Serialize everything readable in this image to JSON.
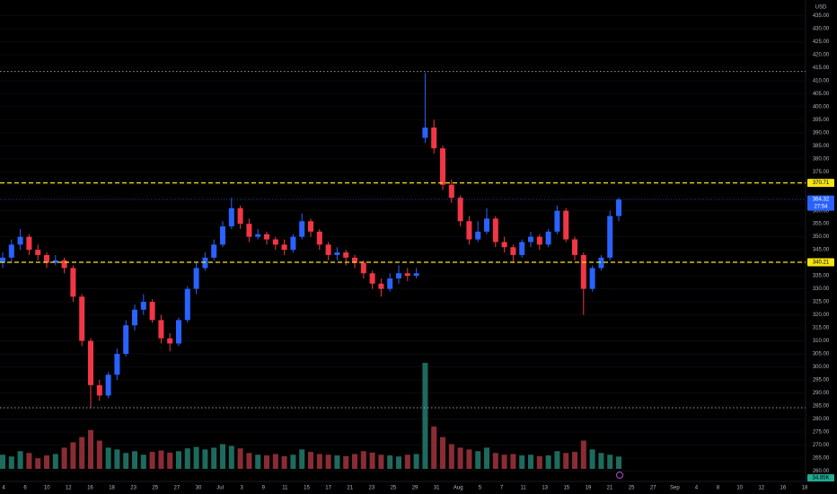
{
  "chart_data": {
    "type": "candlestick",
    "currency": "USD",
    "countdown": "27:54",
    "ylim": [
      256,
      441
    ],
    "yticks": [
      {
        "value": 260,
        "label": "260.00"
      },
      {
        "value": 265,
        "label": "265.00"
      },
      {
        "value": 270,
        "label": "270.00"
      },
      {
        "value": 275,
        "label": "275.00"
      },
      {
        "value": 280,
        "label": "280.00"
      },
      {
        "value": 285,
        "label": "285.00"
      },
      {
        "value": 290,
        "label": "290.00"
      },
      {
        "value": 295,
        "label": "295.00"
      },
      {
        "value": 300,
        "label": "300.00"
      },
      {
        "value": 305,
        "label": "305.00"
      },
      {
        "value": 310,
        "label": "310.00"
      },
      {
        "value": 315,
        "label": "315.00"
      },
      {
        "value": 320,
        "label": "320.00"
      },
      {
        "value": 325,
        "label": "325.00"
      },
      {
        "value": 330,
        "label": "330.00"
      },
      {
        "value": 335,
        "label": "335.00"
      },
      {
        "value": 340,
        "label": "340.00"
      },
      {
        "value": 345,
        "label": "345.00"
      },
      {
        "value": 350,
        "label": "350.00"
      },
      {
        "value": 355,
        "label": "355.00"
      },
      {
        "value": 360,
        "label": "360.00"
      },
      {
        "value": 365,
        "label": "365.00"
      },
      {
        "value": 370,
        "label": "370.00"
      },
      {
        "value": 375,
        "label": "375.00"
      },
      {
        "value": 380,
        "label": "380.00"
      },
      {
        "value": 385,
        "label": "385.00"
      },
      {
        "value": 390,
        "label": "390.00"
      },
      {
        "value": 395,
        "label": "395.00"
      },
      {
        "value": 400,
        "label": "400.00"
      },
      {
        "value": 405,
        "label": "405.00"
      },
      {
        "value": 410,
        "label": "410.00"
      },
      {
        "value": 415,
        "label": "415.00"
      },
      {
        "value": 420,
        "label": "420.00"
      },
      {
        "value": 425,
        "label": "425.00"
      },
      {
        "value": 430,
        "label": "430.00"
      },
      {
        "value": 435,
        "label": "435.00"
      }
    ],
    "xticks": [
      "4",
      "6",
      "10",
      "12",
      "16",
      "18",
      "23",
      "25",
      "27",
      "30",
      "Jul",
      "3",
      "9",
      "11",
      "15",
      "17",
      "21",
      "23",
      "25",
      "29",
      "31",
      "Aug",
      "5",
      "7",
      "11",
      "13",
      "15",
      "19",
      "21",
      "25",
      "27",
      "Sep",
      "4",
      "8",
      "10",
      "12",
      "16",
      "18"
    ],
    "grid": true,
    "up_color": "#2962ff",
    "down_color": "#f23645",
    "volume_up_color": "#1d6b5e",
    "volume_down_color": "#8a2c34",
    "levels": [
      {
        "value": 413.5,
        "style": "dotted",
        "color": "#9a9a9a"
      },
      {
        "value": 370.71,
        "style": "dashed",
        "color": "#f5e313",
        "labeled": true
      },
      {
        "value": 340.21,
        "style": "dashed",
        "color": "#f5e313",
        "labeled": true
      },
      {
        "value": 284.3,
        "style": "dotted",
        "color": "#9a9a9a"
      }
    ],
    "candles": {
      "open": [
        340,
        342,
        347,
        350,
        345,
        343,
        340,
        341,
        338,
        327,
        310,
        293,
        289,
        297,
        305,
        316,
        322,
        325,
        318,
        311,
        309,
        318,
        330,
        338,
        342,
        347,
        354,
        361,
        355,
        350,
        351,
        349,
        347,
        345,
        350,
        356,
        352,
        347,
        343,
        344,
        342,
        340,
        336,
        332,
        330,
        334,
        336,
        335,
        388,
        392,
        384,
        370,
        365,
        356,
        349,
        352,
        357,
        348,
        346,
        343,
        348,
        350,
        347,
        352,
        360,
        349,
        343,
        330,
        338,
        342,
        358
      ],
      "high": [
        344,
        349,
        353,
        351,
        347,
        344,
        343,
        342,
        339,
        328,
        311,
        295,
        298,
        307,
        318,
        324,
        328,
        326,
        320,
        313,
        319,
        331,
        340,
        344,
        349,
        356,
        365,
        362,
        357,
        353,
        352,
        350,
        349,
        351,
        359,
        357,
        353,
        348,
        346,
        345,
        343,
        341,
        337,
        334,
        336,
        339,
        338,
        338,
        413,
        395,
        385,
        372,
        366,
        358,
        356,
        361,
        358,
        350,
        347,
        349,
        352,
        351,
        353,
        362,
        361,
        350,
        344,
        339,
        343,
        360,
        365
      ],
      "low": [
        338,
        340,
        345,
        343,
        341,
        338,
        339,
        336,
        325,
        308,
        284,
        287,
        288,
        295,
        304,
        314,
        320,
        317,
        309,
        306,
        308,
        317,
        328,
        337,
        341,
        346,
        353,
        353,
        348,
        349,
        347,
        345,
        343,
        344,
        349,
        350,
        345,
        341,
        341,
        339,
        338,
        334,
        330,
        327,
        329,
        332,
        333,
        334,
        386,
        382,
        368,
        363,
        354,
        347,
        348,
        351,
        346,
        344,
        340,
        342,
        346,
        345,
        346,
        351,
        348,
        341,
        320,
        329,
        337,
        341,
        356
      ],
      "close": [
        342,
        347,
        350,
        345,
        343,
        340,
        341,
        338,
        327,
        310,
        293,
        289,
        297,
        305,
        316,
        322,
        325,
        318,
        311,
        309,
        318,
        330,
        338,
        342,
        347,
        354,
        361,
        355,
        350,
        351,
        349,
        347,
        345,
        350,
        356,
        352,
        347,
        343,
        344,
        342,
        340,
        336,
        332,
        330,
        334,
        336,
        335,
        336,
        392,
        384,
        370,
        365,
        356,
        349,
        352,
        357,
        348,
        346,
        343,
        348,
        350,
        347,
        352,
        360,
        349,
        343,
        330,
        338,
        342,
        358,
        364.32
      ]
    },
    "volume": {
      "values": [
        40000,
        35000,
        50000,
        45000,
        30000,
        38000,
        42000,
        60000,
        75000,
        90000,
        110000,
        80000,
        60000,
        55000,
        45000,
        50000,
        40000,
        48000,
        52000,
        46000,
        50000,
        58000,
        62000,
        55000,
        60000,
        70000,
        65000,
        58000,
        45000,
        40000,
        38000,
        42000,
        36000,
        40000,
        55000,
        48000,
        42000,
        40000,
        38000,
        36000,
        42000,
        50000,
        46000,
        40000,
        38000,
        35000,
        40000,
        42000,
        300000,
        120000,
        90000,
        70000,
        60000,
        55000,
        50000,
        60000,
        45000,
        40000,
        42000,
        38000,
        40000,
        36000,
        38000,
        50000,
        45000,
        48000,
        80000,
        55000,
        45000,
        40000,
        34850
      ],
      "value_labels": [
        null,
        null,
        null,
        null,
        null,
        null,
        null,
        null,
        null,
        null,
        null,
        null,
        null,
        null,
        null,
        null,
        null,
        null,
        null,
        null,
        null,
        null,
        null,
        null,
        null,
        null,
        null,
        null,
        null,
        null,
        null,
        null,
        null,
        null,
        null,
        null,
        null,
        null,
        null,
        null,
        null,
        null,
        null,
        null,
        null,
        null,
        null,
        null,
        null,
        null,
        null,
        null,
        null,
        null,
        null,
        null,
        null,
        null,
        null,
        null,
        null,
        null,
        null,
        null,
        null,
        null,
        null,
        null,
        null,
        null,
        "34.85K"
      ]
    }
  }
}
